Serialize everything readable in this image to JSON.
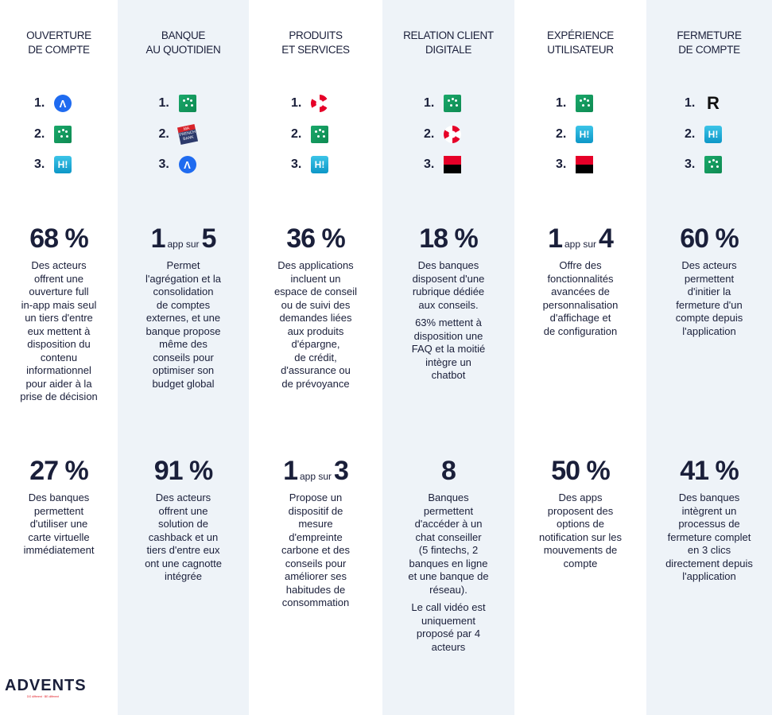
{
  "columns": [
    {
      "title": "OUVERTURE\nDE COMPTE",
      "ranks": [
        {
          "num": "1.",
          "logo": "nickel-icon",
          "glyph": "Λ"
        },
        {
          "num": "2.",
          "logo": "bnp-paribas-icon",
          "glyph": ""
        },
        {
          "num": "3.",
          "logo": "hello-bank-icon",
          "glyph": "H!"
        }
      ],
      "stat1": {
        "value": "68 %",
        "desc": "Des acteurs\noffrent une\nouverture full\nin-app mais seul\nun tiers d'entre\neux mettent à\ndisposition du\ncontenu\ninformationnel\npour aider à la\nprise de décision"
      },
      "stat2": {
        "value": "27 %",
        "desc": "Des banques\npermettent\nd'utiliser une\ncarte virtuelle\nimmédiatement"
      }
    },
    {
      "title": "BANQUE\nAU QUOTIDIEN",
      "ranks": [
        {
          "num": "1.",
          "logo": "bnp-paribas-icon",
          "glyph": ""
        },
        {
          "num": "2.",
          "logo": "ma-french-bank-icon",
          "glyph": "MA\nFRENCH\nBANK"
        },
        {
          "num": "3.",
          "logo": "nickel-icon",
          "glyph": "Λ"
        }
      ],
      "stat1": {
        "value_pre": "1",
        "value_mid": "app sur",
        "value_post": "5",
        "desc": "Permet\nl'agrégation et la\nconsolidation\nde comptes\nexternes, et une\nbanque propose\nmême des\nconseils pour\noptimiser son\nbudget global"
      },
      "stat2": {
        "value": "91 %",
        "desc": "Des acteurs\noffrent une\nsolution de\ncashback et un\ntiers d'entre eux\nont une cagnotte\nintégrée"
      }
    },
    {
      "title": "PRODUITS\nET SERVICES",
      "ranks": [
        {
          "num": "1.",
          "logo": "credit-agricole-icon",
          "glyph": ""
        },
        {
          "num": "2.",
          "logo": "bnp-paribas-icon",
          "glyph": ""
        },
        {
          "num": "3.",
          "logo": "hello-bank-icon",
          "glyph": "H!"
        }
      ],
      "stat1": {
        "value": "36 %",
        "desc": "Des applications\nincluent un\nespace de conseil\nou de suivi des\ndemandes liées\naux produits\nd'épargne,\nde crédit,\nd'assurance ou\nde prévoyance"
      },
      "stat2": {
        "value_pre": "1",
        "value_mid": "app sur",
        "value_post": "3",
        "desc": "Propose un\ndispositif de\nmesure\nd'empreinte\ncarbone et des\nconseils pour\naméliorer ses\nhabitudes de\nconsommation"
      }
    },
    {
      "title": "RELATION CLIENT\nDIGITALE",
      "ranks": [
        {
          "num": "1.",
          "logo": "bnp-paribas-icon",
          "glyph": ""
        },
        {
          "num": "2.",
          "logo": "credit-agricole-icon",
          "glyph": ""
        },
        {
          "num": "3.",
          "logo": "societe-generale-icon",
          "glyph": ""
        }
      ],
      "stat1": {
        "value": "18 %",
        "desc": "Des banques\ndisposent d'une\nrubrique dédiée\naux conseils.",
        "desc2": "63% mettent à\ndisposition une\nFAQ et la moitié\nintègre un\nchatbot"
      },
      "stat2": {
        "value": "8",
        "desc": "Banques\npermettent\nd'accéder à un\nchat conseiller\n(5 fintechs, 2\nbanques en ligne\net une banque de\nréseau).",
        "desc2": "Le call vidéo est\nuniquement\nproposé par 4\nacteurs"
      }
    },
    {
      "title": "EXPÉRIENCE\nUTILISATEUR",
      "ranks": [
        {
          "num": "1.",
          "logo": "bnp-paribas-icon",
          "glyph": ""
        },
        {
          "num": "2.",
          "logo": "hello-bank-icon",
          "glyph": "H!"
        },
        {
          "num": "3.",
          "logo": "societe-generale-icon",
          "glyph": ""
        }
      ],
      "stat1": {
        "value_pre": "1",
        "value_mid": "app sur",
        "value_post": "4",
        "desc": "Offre des\nfonctionnalités\navancées de\npersonnalisation\nd'affichage et\nde configuration"
      },
      "stat2": {
        "value": "50 %",
        "desc": "Des apps\nproposent des\noptions de\nnotification sur les\nmouvements de\ncompte"
      }
    },
    {
      "title": "FERMETURE\nDE COMPTE",
      "ranks": [
        {
          "num": "1.",
          "logo": "revolut-icon",
          "glyph": "R"
        },
        {
          "num": "2.",
          "logo": "hello-bank-icon",
          "glyph": "H!"
        },
        {
          "num": "3.",
          "logo": "bnp-paribas-icon",
          "glyph": ""
        }
      ],
      "stat1": {
        "value": "60 %",
        "desc": "Des acteurs\npermettent\nd'initier la\nfermeture d'un\ncompte depuis\nl'application"
      },
      "stat2": {
        "value": "41 %",
        "desc": "Des banques\nintègrent un\nprocessus de\nfermeture complet\nen 3 clics\ndirectement depuis\nl'application"
      }
    }
  ],
  "brand": {
    "name": "ADVENTS",
    "tagline": "DO different · BE different"
  }
}
